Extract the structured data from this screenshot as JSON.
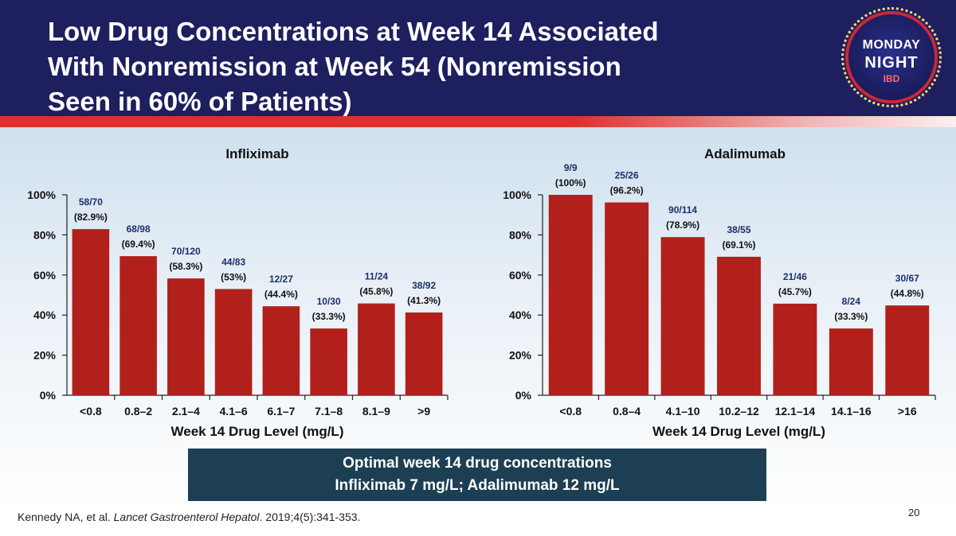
{
  "slide": {
    "title_line1": "Low Drug Concentrations at Week 14 Associated",
    "title_line2": "With Nonremission at Week 54 (Nonremission",
    "title_line3": "Seen in 60% of Patients)",
    "logo_line1": "MONDAY",
    "logo_line2": "NIGHT",
    "logo_line3": "IBD",
    "callout_line1": "Optimal week 14 drug concentrations",
    "callout_line2": "Infliximab 7 mg/L; Adalimumab 12 mg/L",
    "citation_authors": "Kennedy NA, et al. ",
    "citation_journal": "Lancet Gastroenterol Hepatol",
    "citation_rest": ". 2019;4(5):341-353.",
    "page_number": "20",
    "colors": {
      "header": "#1e1f5f",
      "bar": "#b2201b",
      "callout": "#1d3f53",
      "fraction_text": "#1e2f6b"
    }
  },
  "chart_data": [
    {
      "type": "bar",
      "title": "Infliximab",
      "xlabel": "Week 14 Drug Level (mg/L)",
      "ylabel": "",
      "ylim": [
        0,
        100
      ],
      "yticks": [
        "0%",
        "20%",
        "40%",
        "60%",
        "80%",
        "100%"
      ],
      "categories": [
        "<0.8",
        "0.8–2",
        "2.1–4",
        "4.1–6",
        "6.1–7",
        "7.1–8",
        "8.1–9",
        ">9"
      ],
      "values": [
        82.9,
        69.4,
        58.3,
        53,
        44.4,
        33.3,
        45.8,
        41.3
      ],
      "fractions": [
        "58/70",
        "68/98",
        "70/120",
        "44/83",
        "12/27",
        "10/30",
        "11/24",
        "38/92"
      ],
      "percent_labels": [
        "(82.9%)",
        "(69.4%)",
        "(58.3%)",
        "(53%)",
        "(44.4%)",
        "(33.3%)",
        "(45.8%)",
        "(41.3%)"
      ]
    },
    {
      "type": "bar",
      "title": "Adalimumab",
      "xlabel": "Week 14 Drug Level (mg/L)",
      "ylabel": "",
      "ylim": [
        0,
        100
      ],
      "yticks": [
        "0%",
        "20%",
        "40%",
        "60%",
        "80%",
        "100%"
      ],
      "categories": [
        "<0.8",
        "0.8–4",
        "4.1–10",
        "10.2–12",
        "12.1–14",
        "14.1–16",
        ">16"
      ],
      "values": [
        100,
        96.2,
        78.9,
        69.1,
        45.7,
        33.3,
        44.8
      ],
      "fractions": [
        "9/9",
        "25/26",
        "90/114",
        "38/55",
        "21/46",
        "8/24",
        "30/67"
      ],
      "percent_labels": [
        "(100%)",
        "(96.2%)",
        "(78.9%)",
        "(69.1%)",
        "(45.7%)",
        "(33.3%)",
        "(44.8%)"
      ]
    }
  ]
}
